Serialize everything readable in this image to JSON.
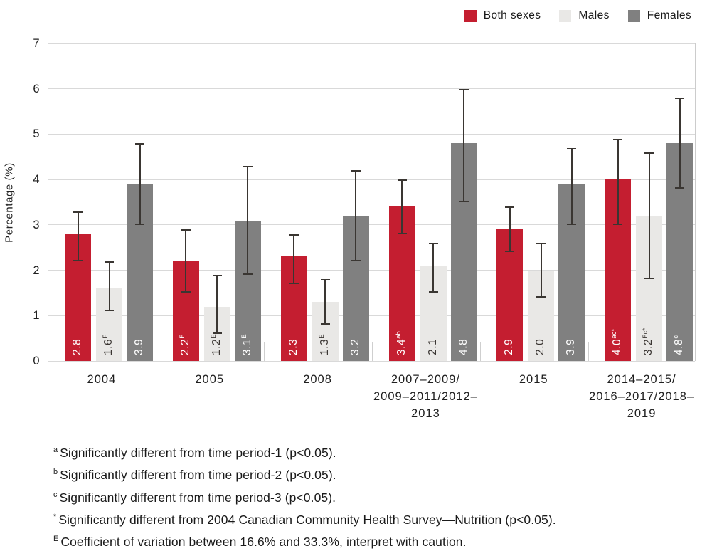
{
  "chart_data": {
    "type": "bar",
    "title": "",
    "xlabel": "",
    "ylabel": "Percentage (%)",
    "ylim": [
      0,
      7
    ],
    "yticks": [
      0,
      1,
      2,
      3,
      4,
      5,
      6,
      7
    ],
    "grid": true,
    "legend_position": "top-right",
    "error_bars": true,
    "error_bar_color": "#3a3632",
    "categories": [
      {
        "lines": [
          "2004"
        ]
      },
      {
        "lines": [
          "2005"
        ]
      },
      {
        "lines": [
          "2008"
        ]
      },
      {
        "lines": [
          "2007–2009/",
          "2009–2011/2012–2013"
        ]
      },
      {
        "lines": [
          "2015"
        ]
      },
      {
        "lines": [
          "2014–2015/",
          "2016–2017/2018–2019"
        ]
      }
    ],
    "series": [
      {
        "name": "Both sexes",
        "color": "#c41e30",
        "label_color": "#ffffff",
        "points": [
          {
            "value": 2.8,
            "label": "2.8",
            "sup": "",
            "ci": [
              2.2,
              3.3
            ]
          },
          {
            "value": 2.2,
            "label": "2.2",
            "sup": "E",
            "ci": [
              1.5,
              2.9
            ]
          },
          {
            "value": 2.3,
            "label": "2.3",
            "sup": "",
            "ci": [
              1.7,
              2.8
            ]
          },
          {
            "value": 3.4,
            "label": "3.4",
            "sup": "ab",
            "ci": [
              2.8,
              4.0
            ]
          },
          {
            "value": 2.9,
            "label": "2.9",
            "sup": "",
            "ci": [
              2.4,
              3.4
            ]
          },
          {
            "value": 4.0,
            "label": "4.0",
            "sup": "ac*",
            "ci": [
              3.0,
              4.9
            ]
          }
        ]
      },
      {
        "name": "Males",
        "color": "#e9e8e6",
        "label_color": "#3b3633",
        "points": [
          {
            "value": 1.6,
            "label": "1.6",
            "sup": "E",
            "ci": [
              1.1,
              2.2
            ]
          },
          {
            "value": 1.2,
            "label": "1.2",
            "sup": "E",
            "ci": [
              0.6,
              1.9
            ]
          },
          {
            "value": 1.3,
            "label": "1.3",
            "sup": "E",
            "ci": [
              0.8,
              1.8
            ]
          },
          {
            "value": 2.1,
            "label": "2.1",
            "sup": "",
            "ci": [
              1.5,
              2.6
            ]
          },
          {
            "value": 2.0,
            "label": "2.0",
            "sup": "",
            "ci": [
              1.4,
              2.6
            ]
          },
          {
            "value": 3.2,
            "label": "3.2",
            "sup": "Ec*",
            "ci": [
              1.8,
              4.6
            ]
          }
        ]
      },
      {
        "name": "Females",
        "color": "#808080",
        "label_color": "#ffffff",
        "points": [
          {
            "value": 3.9,
            "label": "3.9",
            "sup": "",
            "ci": [
              3.0,
              4.8
            ]
          },
          {
            "value": 3.1,
            "label": "3.1",
            "sup": "E",
            "ci": [
              1.9,
              4.3
            ]
          },
          {
            "value": 3.2,
            "label": "3.2",
            "sup": "",
            "ci": [
              2.2,
              4.2
            ]
          },
          {
            "value": 4.8,
            "label": "4.8",
            "sup": "",
            "ci": [
              3.5,
              6.0
            ]
          },
          {
            "value": 3.9,
            "label": "3.9",
            "sup": "",
            "ci": [
              3.0,
              4.7
            ]
          },
          {
            "value": 4.8,
            "label": "4.8",
            "sup": "c",
            "ci": [
              3.8,
              5.8
            ]
          }
        ]
      }
    ]
  },
  "footnotes": [
    {
      "sup": "a",
      "text": "Significantly different from time period-1 (p<0.05)."
    },
    {
      "sup": "b",
      "text": "Significantly different from time period-2 (p<0.05)."
    },
    {
      "sup": "c",
      "text": "Significantly different from time period-3 (p<0.05)."
    },
    {
      "sup": "*",
      "text": "Significantly different from 2004 Canadian Community Health Survey—Nutrition (p<0.05)."
    },
    {
      "sup": "E",
      "text": "Coefficient of variation between 16.6% and 33.3%, interpret with caution."
    }
  ]
}
